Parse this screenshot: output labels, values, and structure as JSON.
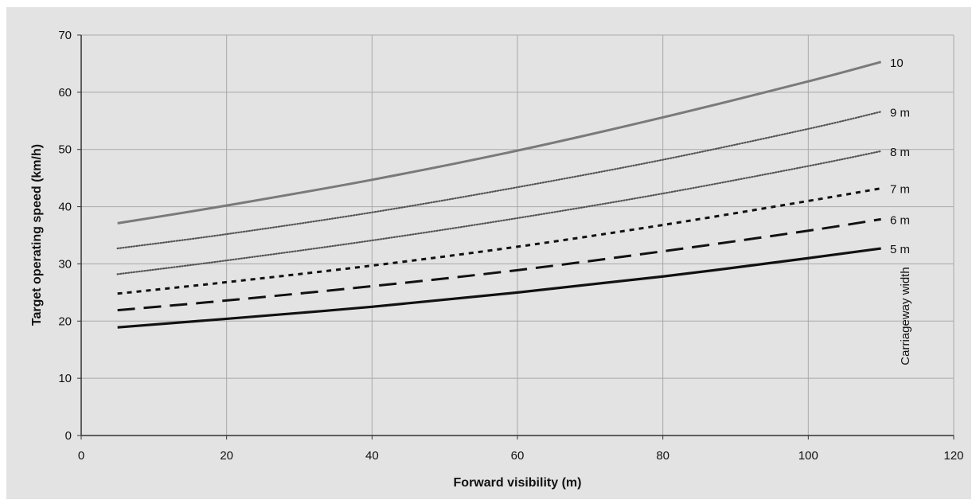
{
  "chart_data": {
    "type": "line",
    "title": "",
    "xlabel": "Forward visibility (m)",
    "ylabel": "Target operating speed (km/h)",
    "xlim": [
      0,
      120
    ],
    "ylim": [
      0,
      70
    ],
    "xticks": [
      0,
      20,
      40,
      60,
      80,
      100,
      120
    ],
    "yticks": [
      0,
      10,
      20,
      30,
      40,
      50,
      60,
      70
    ],
    "grid": true,
    "legend_title": "Carriageway width",
    "x": [
      5,
      20,
      40,
      60,
      80,
      100,
      110
    ],
    "series": [
      {
        "name": "10",
        "values": [
          37.1,
          40.2,
          44.7,
          49.8,
          55.6,
          61.9,
          65.3
        ],
        "style": "solid-grey"
      },
      {
        "name": "9 m",
        "values": [
          32.7,
          35.2,
          39.0,
          43.4,
          48.2,
          53.6,
          56.6
        ],
        "style": "dotted-fine"
      },
      {
        "name": "8 m",
        "values": [
          28.2,
          30.6,
          34.1,
          38.0,
          42.3,
          47.1,
          49.7
        ],
        "style": "dotted-fine"
      },
      {
        "name": "7 m",
        "values": [
          24.8,
          26.8,
          29.7,
          33.0,
          36.8,
          41.0,
          43.2
        ],
        "style": "short-dash"
      },
      {
        "name": "6 m",
        "values": [
          21.9,
          23.6,
          26.1,
          28.9,
          32.2,
          35.8,
          37.8
        ],
        "style": "long-dash"
      },
      {
        "name": "5 m",
        "values": [
          18.9,
          20.4,
          22.5,
          25.0,
          27.8,
          31.0,
          32.7
        ],
        "style": "solid-black"
      }
    ]
  }
}
